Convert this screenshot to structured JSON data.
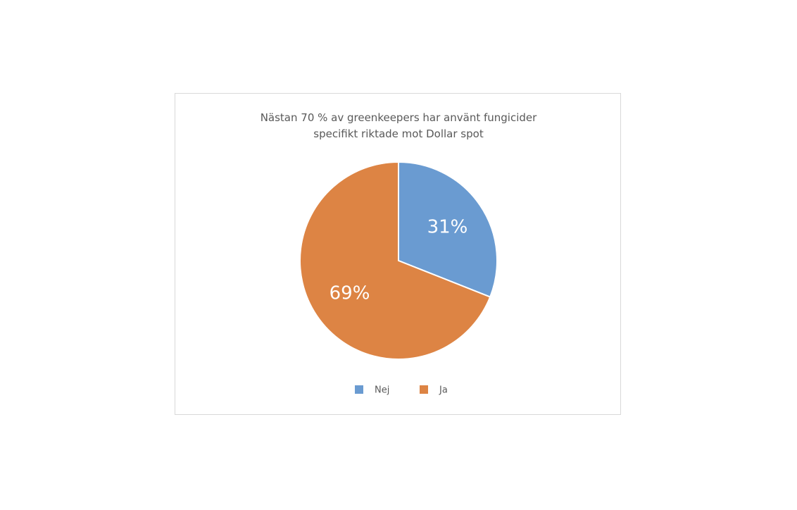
{
  "chart_data": {
    "type": "pie",
    "title": "Nästan 70 % av greenkeepers har använt fungicider specifikt riktade mot Dollar spot",
    "categories": [
      "Nej",
      "Ja"
    ],
    "values": [
      31,
      69
    ],
    "value_labels": [
      "31%",
      "69%"
    ],
    "colors": [
      "#6a9bd1",
      "#dd8444"
    ],
    "legend": "bottom"
  }
}
